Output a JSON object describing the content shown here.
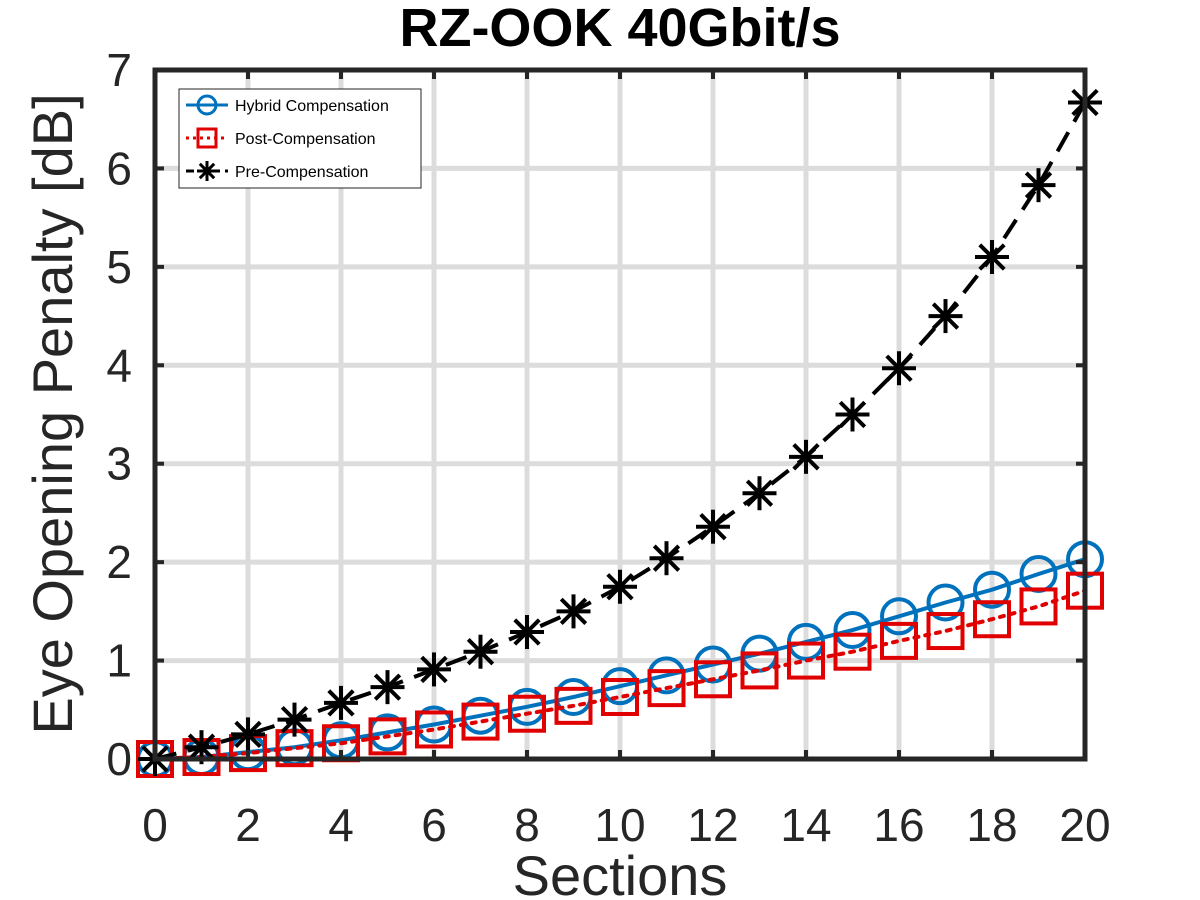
{
  "chart_data": {
    "type": "line",
    "title": "RZ-OOK 40Gbit/s",
    "xlabel": "Sections",
    "ylabel": "Eye Opening Penalty [dB]",
    "xlim": [
      0,
      20
    ],
    "ylim": [
      0,
      7
    ],
    "xticks": [
      0,
      2,
      4,
      6,
      8,
      10,
      12,
      14,
      16,
      18,
      20
    ],
    "yticks": [
      0,
      1,
      2,
      3,
      4,
      5,
      6,
      7
    ],
    "grid": true,
    "legend_position": "top-left",
    "x": [
      0,
      1,
      2,
      3,
      4,
      5,
      6,
      7,
      8,
      9,
      10,
      11,
      12,
      13,
      14,
      15,
      16,
      17,
      18,
      19,
      20
    ],
    "series": [
      {
        "name": "Hybrid Compensation",
        "color": "#0072BD",
        "line": "solid",
        "marker": "circle",
        "values": [
          0,
          0.02,
          0.07,
          0.12,
          0.19,
          0.27,
          0.35,
          0.44,
          0.53,
          0.63,
          0.74,
          0.85,
          0.96,
          1.07,
          1.19,
          1.31,
          1.45,
          1.59,
          1.72,
          1.88,
          2.03
        ]
      },
      {
        "name": "Post-Compensation",
        "color": "#E00000",
        "line": "dotted",
        "marker": "square",
        "values": [
          0,
          0.02,
          0.06,
          0.11,
          0.16,
          0.23,
          0.3,
          0.38,
          0.46,
          0.54,
          0.63,
          0.72,
          0.81,
          0.9,
          1.0,
          1.09,
          1.2,
          1.3,
          1.42,
          1.55,
          1.71
        ]
      },
      {
        "name": "Pre-Compensation",
        "color": "#000000",
        "line": "dashed",
        "marker": "asterisk",
        "values": [
          0,
          0.12,
          0.25,
          0.4,
          0.57,
          0.73,
          0.91,
          1.09,
          1.29,
          1.5,
          1.75,
          2.04,
          2.36,
          2.7,
          3.07,
          3.5,
          3.97,
          4.5,
          5.1,
          5.83,
          6.67
        ]
      }
    ]
  }
}
